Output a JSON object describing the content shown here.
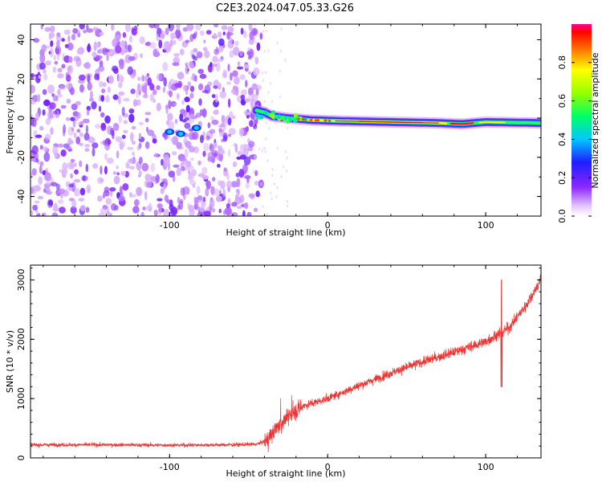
{
  "chart_data": [
    {
      "type": "heatmap",
      "title": "C2E3.2024.047.05.33.G26",
      "xlabel": "Height of straight line (km)",
      "ylabel": "Frequency (Hz)",
      "xlim": [
        -188,
        135
      ],
      "ylim": [
        -50,
        48
      ],
      "xticks": [
        -100,
        0,
        100
      ],
      "yticks": [
        -40,
        -20,
        0,
        20,
        40
      ],
      "colorbar": {
        "label": "Normalized spectral amplitude",
        "range": [
          0,
          1
        ],
        "ticks": [
          0.0,
          0.2,
          0.4,
          0.6,
          0.8
        ]
      },
      "features": {
        "noise_region_height_km": [
          -188,
          -45
        ],
        "signal_track": [
          {
            "x": -45,
            "y": 4
          },
          {
            "x": -40,
            "y": 3
          },
          {
            "x": -35,
            "y": 1
          },
          {
            "x": -25,
            "y": 0
          },
          {
            "x": -10,
            "y": -1
          },
          {
            "x": 10,
            "y": -1.5
          },
          {
            "x": 40,
            "y": -2
          },
          {
            "x": 70,
            "y": -2.5
          },
          {
            "x": 85,
            "y": -3
          },
          {
            "x": 100,
            "y": -2
          },
          {
            "x": 135,
            "y": -2.5
          }
        ],
        "weak_blobs": [
          {
            "x": -100,
            "y": -7
          },
          {
            "x": -93,
            "y": -8
          },
          {
            "x": -83,
            "y": -5
          }
        ]
      }
    },
    {
      "type": "line",
      "xlabel": "Height of straight line (km)",
      "ylabel": "SNR (10 * v/v)",
      "xlim": [
        -188,
        135
      ],
      "ylim": [
        0,
        3250
      ],
      "xticks": [
        -100,
        0,
        100
      ],
      "yticks": [
        0,
        1000,
        2000,
        3000
      ],
      "color": "#ee3333",
      "envelope": [
        {
          "x": -188,
          "y": 220
        },
        {
          "x": -140,
          "y": 220
        },
        {
          "x": -100,
          "y": 215
        },
        {
          "x": -60,
          "y": 220
        },
        {
          "x": -45,
          "y": 230
        },
        {
          "x": -38,
          "y": 300
        },
        {
          "x": -32,
          "y": 520
        },
        {
          "x": -25,
          "y": 700
        },
        {
          "x": -15,
          "y": 880
        },
        {
          "x": 0,
          "y": 1000
        },
        {
          "x": 20,
          "y": 1220
        },
        {
          "x": 40,
          "y": 1430
        },
        {
          "x": 60,
          "y": 1620
        },
        {
          "x": 80,
          "y": 1780
        },
        {
          "x": 100,
          "y": 1960
        },
        {
          "x": 115,
          "y": 2200
        },
        {
          "x": 125,
          "y": 2550
        },
        {
          "x": 135,
          "y": 3000
        }
      ],
      "spike": {
        "x": 110,
        "y_max": 3000,
        "y_min": 1200
      }
    }
  ]
}
